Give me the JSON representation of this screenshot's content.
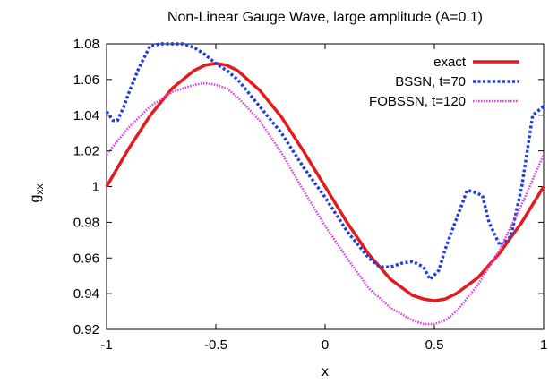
{
  "chart_data": {
    "type": "line",
    "title": "Non-Linear Gauge Wave, large amplitude (A=0.1)",
    "xlabel": "x",
    "ylabel": {
      "base": "g",
      "sub": "xx"
    },
    "xlim": [
      -1,
      1
    ],
    "ylim": [
      0.92,
      1.08
    ],
    "xticks": [
      -1,
      -0.5,
      0,
      0.5,
      1
    ],
    "xtick_labels": [
      "-1",
      "-0.5",
      "0",
      "0.5",
      "1"
    ],
    "yticks": [
      0.92,
      0.94,
      0.96,
      0.98,
      1.0,
      1.02,
      1.04,
      1.06,
      1.08
    ],
    "ytick_labels": [
      "0.92",
      "0.94",
      "0.96",
      "0.98",
      "1",
      "1.02",
      "1.04",
      "1.06",
      "1.08"
    ],
    "grid": false,
    "legend_position": "top-right",
    "series": [
      {
        "name": "exact",
        "color": "#e41a1c",
        "style": "solid",
        "x": [
          -1,
          -0.9,
          -0.8,
          -0.7,
          -0.6,
          -0.55,
          -0.5,
          -0.45,
          -0.4,
          -0.3,
          -0.2,
          -0.1,
          0,
          0.1,
          0.2,
          0.3,
          0.4,
          0.45,
          0.5,
          0.55,
          0.6,
          0.7,
          0.8,
          0.9,
          1
        ],
        "values": [
          1.0,
          1.021,
          1.04,
          1.055,
          1.065,
          1.068,
          1.069,
          1.068,
          1.065,
          1.054,
          1.039,
          1.02,
          1.0,
          0.98,
          0.962,
          0.948,
          0.939,
          0.937,
          0.936,
          0.937,
          0.94,
          0.949,
          0.963,
          0.98,
          1.0
        ]
      },
      {
        "name": "BSSN, t=70",
        "color": "#1f3fdc",
        "style": "dashed",
        "x": [
          -1,
          -0.97,
          -0.95,
          -0.92,
          -0.9,
          -0.85,
          -0.8,
          -0.75,
          -0.7,
          -0.65,
          -0.6,
          -0.55,
          -0.5,
          -0.45,
          -0.4,
          -0.3,
          -0.2,
          -0.1,
          0,
          0.1,
          0.2,
          0.25,
          0.3,
          0.35,
          0.4,
          0.45,
          0.48,
          0.52,
          0.55,
          0.58,
          0.62,
          0.65,
          0.68,
          0.72,
          0.75,
          0.8,
          0.85,
          0.9,
          0.95,
          1
        ],
        "values": [
          1.042,
          1.037,
          1.037,
          1.045,
          1.052,
          1.067,
          1.079,
          1.08,
          1.08,
          1.08,
          1.078,
          1.074,
          1.069,
          1.065,
          1.06,
          1.045,
          1.03,
          1.011,
          0.994,
          0.975,
          0.96,
          0.955,
          0.955,
          0.957,
          0.958,
          0.955,
          0.948,
          0.953,
          0.965,
          0.975,
          0.988,
          0.998,
          0.997,
          0.995,
          0.98,
          0.967,
          0.972,
          1.0,
          1.04,
          1.045
        ]
      },
      {
        "name": "FOBSSN, t=120",
        "color": "#dd44dd",
        "style": "dotted",
        "x": [
          -1,
          -0.9,
          -0.8,
          -0.7,
          -0.6,
          -0.55,
          -0.5,
          -0.45,
          -0.4,
          -0.3,
          -0.2,
          -0.1,
          0,
          0.1,
          0.2,
          0.3,
          0.4,
          0.45,
          0.5,
          0.55,
          0.6,
          0.7,
          0.8,
          0.9,
          1
        ],
        "values": [
          1.018,
          1.033,
          1.045,
          1.053,
          1.057,
          1.058,
          1.057,
          1.055,
          1.05,
          1.037,
          1.019,
          0.998,
          0.978,
          0.96,
          0.943,
          0.932,
          0.925,
          0.923,
          0.923,
          0.925,
          0.93,
          0.945,
          0.965,
          0.99,
          1.018
        ]
      }
    ]
  }
}
